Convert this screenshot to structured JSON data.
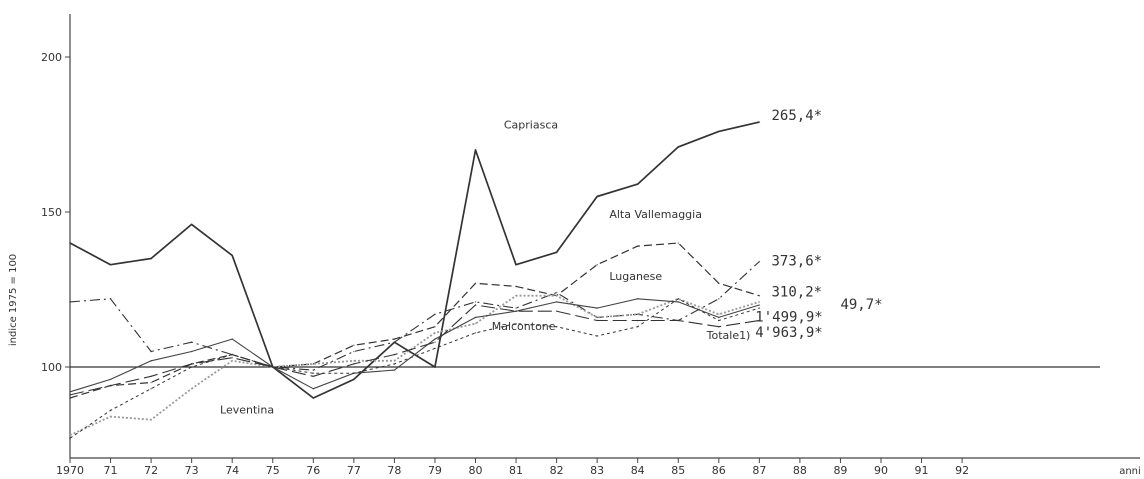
{
  "chart_data": {
    "type": "line",
    "title": "",
    "xlabel": "anni",
    "ylabel": "indice 1975 = 100",
    "x": [
      1970,
      1971,
      1972,
      1973,
      1974,
      1975,
      1976,
      1977,
      1978,
      1979,
      1980,
      1981,
      1982,
      1983,
      1984,
      1985,
      1986,
      1987
    ],
    "xticks": [
      1970,
      1971,
      1972,
      1973,
      1974,
      1975,
      1976,
      1977,
      1978,
      1979,
      1980,
      1981,
      1982,
      1983,
      1984,
      1985,
      1986,
      1987,
      1988,
      1989,
      1990,
      1991,
      1992
    ],
    "xtick_labels": [
      "1970",
      "71",
      "72",
      "73",
      "74",
      "75",
      "76",
      "77",
      "78",
      "79",
      "80",
      "81",
      "82",
      "83",
      "84",
      "85",
      "86",
      "87",
      "88",
      "89",
      "90",
      "91",
      "92"
    ],
    "xlim": [
      1970,
      1992
    ],
    "yticks": [
      100,
      150,
      200
    ],
    "ylim": [
      75,
      210
    ],
    "reference_line": 100,
    "series": [
      {
        "name": "Capriasca",
        "style": "solid",
        "end_label": "265,4*",
        "values": [
          140,
          133,
          135,
          146,
          136,
          100,
          90,
          96,
          108,
          100,
          170,
          133,
          137,
          155,
          159,
          171,
          176,
          179
        ]
      },
      {
        "name": "Alta Vallemaggia",
        "style": "dash-dot",
        "end_label": "373,6*",
        "values": [
          121,
          122,
          105,
          108,
          104,
          100,
          99,
          105,
          108,
          117,
          121,
          119,
          124,
          116,
          117,
          115,
          122,
          134
        ]
      },
      {
        "name": "Luganese",
        "style": "dashed",
        "end_label": "310,2*",
        "values": [
          90,
          94,
          95,
          101,
          104,
          100,
          101,
          107,
          109,
          113,
          127,
          126,
          123,
          133,
          139,
          140,
          127,
          123
        ]
      },
      {
        "name": "",
        "style": "gray-dotted",
        "end_label": "49,7*",
        "values": [
          78,
          84,
          83,
          93,
          102,
          100,
          101,
          102,
          102,
          111,
          114,
          123,
          123,
          116,
          117,
          122,
          117,
          121
        ]
      },
      {
        "name": "Malcontone",
        "style": "thin-solid",
        "end_label": "1'499,9*",
        "values": [
          92,
          96,
          102,
          105,
          109,
          100,
          93,
          98,
          99,
          109,
          116,
          118,
          121,
          119,
          122,
          121,
          116,
          120
        ]
      },
      {
        "name": "Totale",
        "style": "long-dash",
        "end_label": "4'963,9*",
        "values": [
          91,
          94,
          97,
          101,
          103,
          100,
          97,
          101,
          104,
          108,
          120,
          118,
          118,
          115,
          115,
          115,
          113,
          115
        ]
      },
      {
        "name": "Leventina",
        "style": "dense-dash",
        "end_label": "",
        "values": [
          77,
          86,
          93,
          100,
          104,
          100,
          98,
          98,
          101,
          106,
          111,
          114,
          113,
          110,
          113,
          122,
          115,
          119
        ]
      }
    ],
    "annotations": [
      {
        "text": "Capriasca",
        "x": 1980.7,
        "y": 177
      },
      {
        "text": "Alta Vallemaggia",
        "x": 1983.3,
        "y": 148
      },
      {
        "text": "Luganese",
        "x": 1983.3,
        "y": 128
      },
      {
        "text": "Malcontone",
        "x": 1980.4,
        "y": 112
      },
      {
        "text": "Totale",
        "x": 1985.7,
        "y": 109
      },
      {
        "text": "1)",
        "x": 1986.5,
        "y": 109
      },
      {
        "text": "Leventina",
        "x": 1973.7,
        "y": 85
      }
    ],
    "end_labels": [
      {
        "text": "265,4*",
        "x": 1987.3,
        "y": 181
      },
      {
        "text": "373,6*",
        "x": 1987.3,
        "y": 134
      },
      {
        "text": "310,2*",
        "x": 1987.3,
        "y": 124
      },
      {
        "text": "49,7*",
        "x": 1989.0,
        "y": 120
      },
      {
        "text": "1'499,9*",
        "x": 1986.9,
        "y": 116
      },
      {
        "text": "4'963,9*",
        "x": 1986.9,
        "y": 111
      }
    ],
    "grid": false,
    "legend": "none"
  }
}
